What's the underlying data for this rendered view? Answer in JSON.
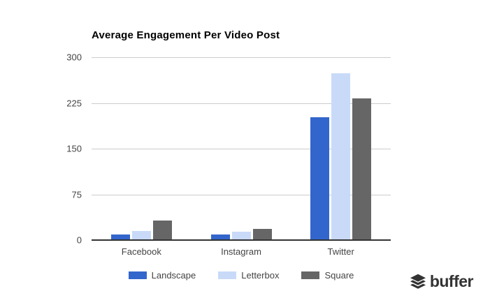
{
  "chart_data": {
    "type": "bar",
    "title": "Average Engagement Per Video Post",
    "categories": [
      "Facebook",
      "Instagram",
      "Twitter"
    ],
    "series": [
      {
        "name": "Landscape",
        "color": "#3366CC",
        "values": [
          9,
          9,
          201
        ]
      },
      {
        "name": "Letterbox",
        "color": "#C9DAF8",
        "values": [
          15,
          14,
          274
        ]
      },
      {
        "name": "Square",
        "color": "#666666",
        "values": [
          32,
          18,
          233
        ]
      }
    ],
    "xlabel": "",
    "ylabel": "",
    "ylim": [
      0,
      300
    ],
    "yticks": [
      0,
      75,
      150,
      225,
      300
    ],
    "grid": true,
    "legend_position": "bottom",
    "grid_color": "#cccccc",
    "axis_color": "#333333",
    "tick_label_color": "#444444"
  },
  "logo": {
    "text": "buffer",
    "color": "#333333"
  }
}
